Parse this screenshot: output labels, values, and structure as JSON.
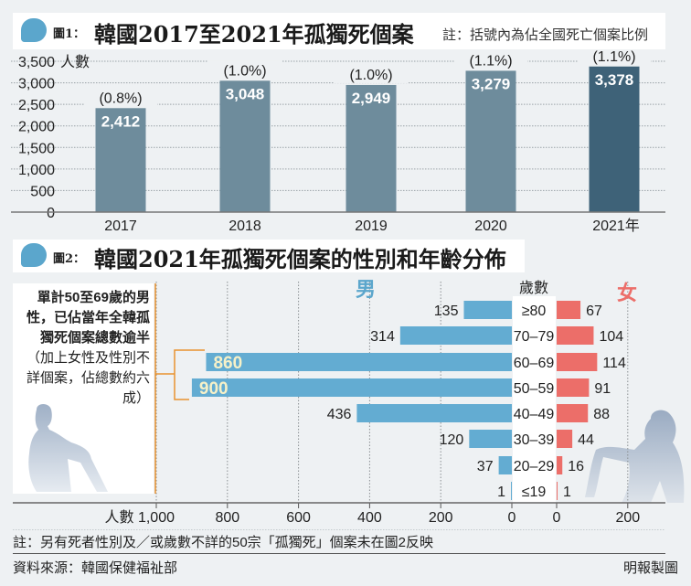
{
  "figure1": {
    "label": "圖1：",
    "title": "韓國2017至2021年孤獨死個案",
    "note": "註：括號內為佔全國死亡個案比例"
  },
  "figure2": {
    "label": "圖2：",
    "title": "韓國2021年孤獨死個案的性別和年齡分佈"
  },
  "callout": {
    "bold": "單計50至69歲的男性，已佔當年全韓孤獨死個案總數逾半",
    "normal": "（加上女性及性別不詳個案，佔總數約六成）"
  },
  "footer": {
    "note": "註：另有死者性別及／或歲數不詳的50宗「孤獨死」個案未在圖2反映",
    "source": "資料來源：韓國保健福祉部",
    "credit": "明報製圖"
  },
  "colors": {
    "bar_regular": "#6e8c9c",
    "bar_highlight": "#3e6278",
    "male": "#63acd2",
    "female": "#ec6e69",
    "bracket": "#e8922f",
    "male_label": "#5ba6cc",
    "female_label": "#ec6e69"
  },
  "chart_data": [
    {
      "type": "bar",
      "title": "韓國2017至2021年孤獨死個案",
      "ylabel": "人數",
      "categories": [
        "2017",
        "2018",
        "2019",
        "2020",
        "2021年"
      ],
      "values": [
        2412,
        3048,
        2949,
        3279,
        3378
      ],
      "value_labels": [
        "2,412",
        "3,048",
        "2,949",
        "3,279",
        "3,378"
      ],
      "share_labels": [
        "(0.8%)",
        "(1.0%)",
        "(1.0%)",
        "(1.1%)",
        "(1.1%)"
      ],
      "highlight_index": 4,
      "ylim": [
        0,
        3500
      ],
      "yticks": [
        0,
        500,
        1000,
        1500,
        2000,
        2500,
        3000,
        3500
      ],
      "ytick_labels": [
        "0",
        "500",
        "1,000",
        "1,500",
        "2,000",
        "2,500",
        "3,000",
        "3,500"
      ],
      "grid": true
    },
    {
      "type": "bar",
      "orientation": "horizontal-butterfly",
      "title": "韓國2021年孤獨死個案的性別和年齡分佈",
      "age_header": "歲數",
      "categories": [
        "≥80",
        "70-79",
        "60-69",
        "50-59",
        "40-49",
        "30-39",
        "20-29",
        "≤19"
      ],
      "series": [
        {
          "name": "男",
          "values": [
            135,
            314,
            860,
            900,
            436,
            120,
            37,
            1
          ]
        },
        {
          "name": "女",
          "values": [
            67,
            104,
            114,
            91,
            88,
            44,
            16,
            1
          ]
        }
      ],
      "male_axis": {
        "ticks": [
          1000,
          800,
          600,
          400,
          200,
          0
        ],
        "tick_labels": [
          "人數 1,000",
          "800",
          "600",
          "400",
          "200",
          "0"
        ],
        "xlim": [
          0,
          1000
        ]
      },
      "female_axis": {
        "ticks": [
          0,
          200
        ],
        "tick_labels": [
          "0",
          "200"
        ],
        "xlim": [
          0,
          300
        ]
      },
      "highlight_indices": [
        2,
        3
      ],
      "grid": true
    }
  ]
}
